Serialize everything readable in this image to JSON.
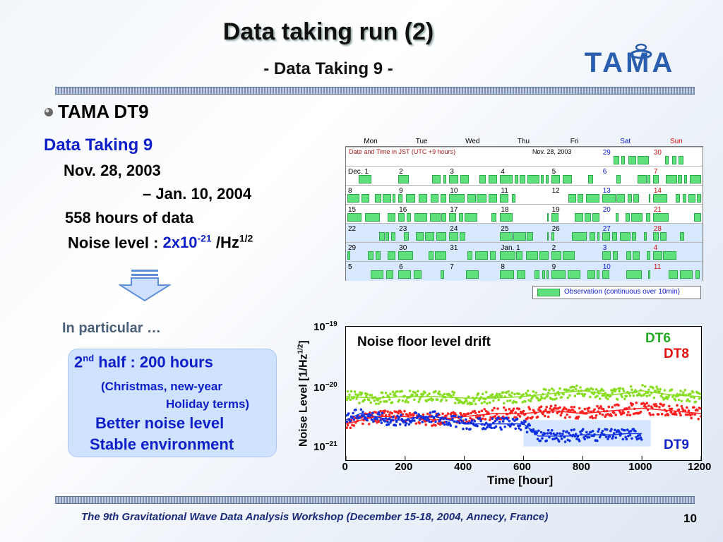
{
  "title": "Data taking run (2)",
  "subtitle": "- Data Taking 9 -",
  "logo_text": "TAMA",
  "bullet": "TAMA DT9",
  "details": {
    "heading": "Data Taking 9",
    "date_start": "Nov. 28, 2003",
    "date_end": "– Jan. 10, 2004",
    "hours": "558 hours of data",
    "noise_label": "Noise level : ",
    "noise_value_base": "2x10",
    "noise_value_exp": "-21",
    "noise_unit_base": "/Hz",
    "noise_unit_exp": "1/2"
  },
  "in_particular": "In particular …",
  "callout": {
    "line1_prefix": "2",
    "line1_sup": "nd",
    "line1_rest": " half : 200 hours",
    "line2": "(Christmas, new-year",
    "line3": "Holiday terms)",
    "line4": "Better noise level",
    "line5": "Stable environment"
  },
  "calendar": {
    "weekdays": [
      "Mon",
      "Tue",
      "Wed",
      "Thu",
      "Fri",
      "Sat",
      "Sun"
    ],
    "weekday_colors": [
      "#000000",
      "#000000",
      "#000000",
      "#000000",
      "#000000",
      "#1020c8",
      "#d01010"
    ],
    "note": "Date and Time in JST  (UTC +9 hours)",
    "start_label": "Nov. 28, 2003",
    "rows": [
      [
        "",
        "",
        "",
        "",
        "",
        "29",
        "30"
      ],
      [
        "Dec. 1",
        "2",
        "3",
        "4",
        "5",
        "6",
        "7"
      ],
      [
        "8",
        "9",
        "10",
        "11",
        "12",
        "13",
        "14"
      ],
      [
        "15",
        "16",
        "17",
        "18",
        "19",
        "20",
        "21"
      ],
      [
        "22",
        "23",
        "24",
        "25",
        "26",
        "27",
        "28"
      ],
      [
        "29",
        "30",
        "31",
        "Jan. 1",
        "2",
        "3",
        "4"
      ],
      [
        "5",
        "6",
        "7",
        "8",
        "9",
        "10",
        "11"
      ]
    ],
    "legend": "Observation (continuous over 10min)"
  },
  "plot": {
    "title": "Noise floor level drift",
    "ylabel": "Noise Level  [1/Hz",
    "ylabel_exp": "1/2",
    "ylabel_close": "]",
    "xlabel": "Time  [hour]",
    "xticks": [
      "0",
      "200",
      "400",
      "600",
      "800",
      "1000",
      "1200"
    ],
    "yticks": [
      {
        "base": "10",
        "exp": "−19"
      },
      {
        "base": "10",
        "exp": "−20"
      },
      {
        "base": "10",
        "exp": "−21"
      }
    ],
    "labels": [
      {
        "text": "DT6",
        "color": "#22aa22"
      },
      {
        "text": "DT8",
        "color": "#e01010"
      },
      {
        "text": "DT9",
        "color": "#1020c8"
      }
    ]
  },
  "chart_data": {
    "type": "scatter",
    "title": "Noise floor level drift",
    "xlabel": "Time  [hour]",
    "ylabel": "Noise Level  [1/Hz^1/2]",
    "xlim": [
      0,
      1200
    ],
    "ylim": [
      1e-21,
      1e-19
    ],
    "yscale": "log",
    "grid": false,
    "series": [
      {
        "name": "DT6",
        "color": "#88dd22",
        "x": [
          0,
          100,
          200,
          300,
          400,
          500,
          600,
          700,
          800,
          900,
          1000,
          1100,
          1200
        ],
        "y": [
          9e-21,
          8.5e-21,
          9e-21,
          9e-21,
          8.5e-21,
          8.5e-21,
          9e-21,
          1e-20,
          1.1e-20,
          9.5e-21,
          1.1e-20,
          9.5e-21,
          9e-21
        ]
      },
      {
        "name": "DT8",
        "color": "#ff2020",
        "x": [
          0,
          100,
          200,
          300,
          400,
          500,
          600,
          700,
          800,
          900,
          1000,
          1100,
          1200
        ],
        "y": [
          3.5e-21,
          4.5e-21,
          4.5e-21,
          4e-21,
          4.5e-21,
          5e-21,
          5e-21,
          5.5e-21,
          5e-21,
          5.5e-21,
          6e-21,
          5.5e-21,
          5e-21
        ]
      },
      {
        "name": "DT9",
        "color": "#1030e0",
        "x": [
          0,
          50,
          100,
          150,
          200,
          250,
          300,
          350,
          400,
          450,
          500,
          550,
          600,
          650,
          700,
          750,
          800,
          850,
          900,
          950,
          1000
        ],
        "y": [
          4e-21,
          5e-21,
          4.5e-21,
          4e-21,
          4e-21,
          4.5e-21,
          4.5e-21,
          4e-21,
          3.5e-21,
          3.5e-21,
          3.5e-21,
          3.5e-21,
          3.5e-21,
          2.3e-21,
          2.3e-21,
          2.3e-21,
          2.4e-21,
          2.4e-21,
          2.4e-21,
          2.5e-21,
          2.5e-21
        ]
      }
    ]
  }
}
